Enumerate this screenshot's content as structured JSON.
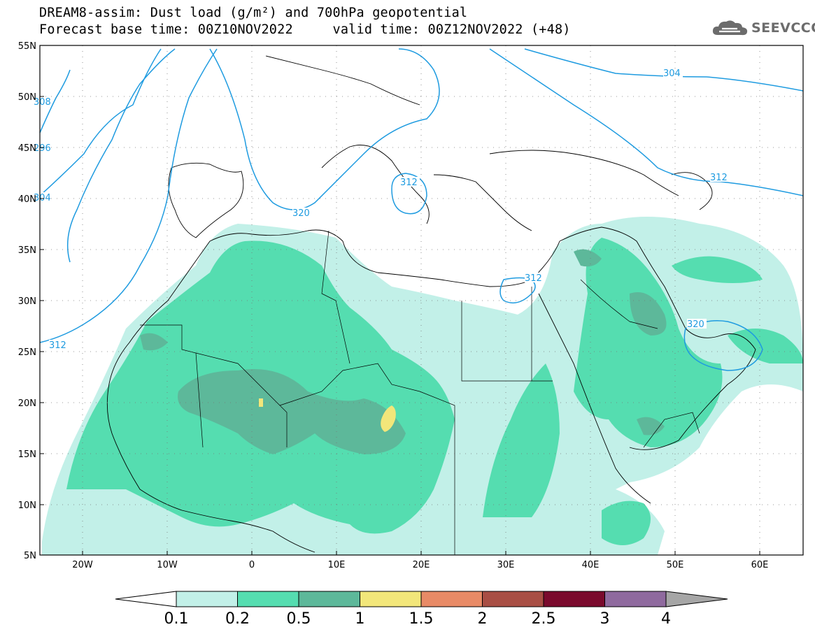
{
  "header": {
    "line1": "DREAM8-assim: Dust load (g/m²) and 700hPa geopotential",
    "line2": "Forecast base time: 00Z10NOV2022     valid time: 00Z12NOV2022 (+48)"
  },
  "logo": {
    "text": "SEEVCCC",
    "icon": "cloud-icon"
  },
  "map": {
    "lon_range": [
      -25,
      65
    ],
    "lat_range": [
      5,
      55
    ],
    "lat_ticks": [
      "55N",
      "50N",
      "45N",
      "40N",
      "35N",
      "30N",
      "25N",
      "20N",
      "15N",
      "10N",
      "5N"
    ],
    "lon_ticks": [
      "20W",
      "10W",
      "0",
      "10E",
      "20E",
      "30E",
      "40E",
      "50E",
      "60E"
    ],
    "grid": "dotted"
  },
  "contours": {
    "color": "#1e9be0",
    "labels": [
      "308",
      "296",
      "304",
      "312",
      "320",
      "312",
      "312",
      "304",
      "312",
      "320"
    ]
  },
  "colorbar": {
    "labels": [
      "0.1",
      "0.2",
      "0.5",
      "1",
      "1.5",
      "2",
      "2.5",
      "3",
      "4"
    ],
    "colors": [
      "#c2f0e8",
      "#55ddb0",
      "#5db89a",
      "#f2e67a",
      "#e88a66",
      "#a84e44",
      "#7a0a2d",
      "#8f6a9e"
    ],
    "low_color": "#ffffff",
    "high_color": "#a6a6a6"
  }
}
